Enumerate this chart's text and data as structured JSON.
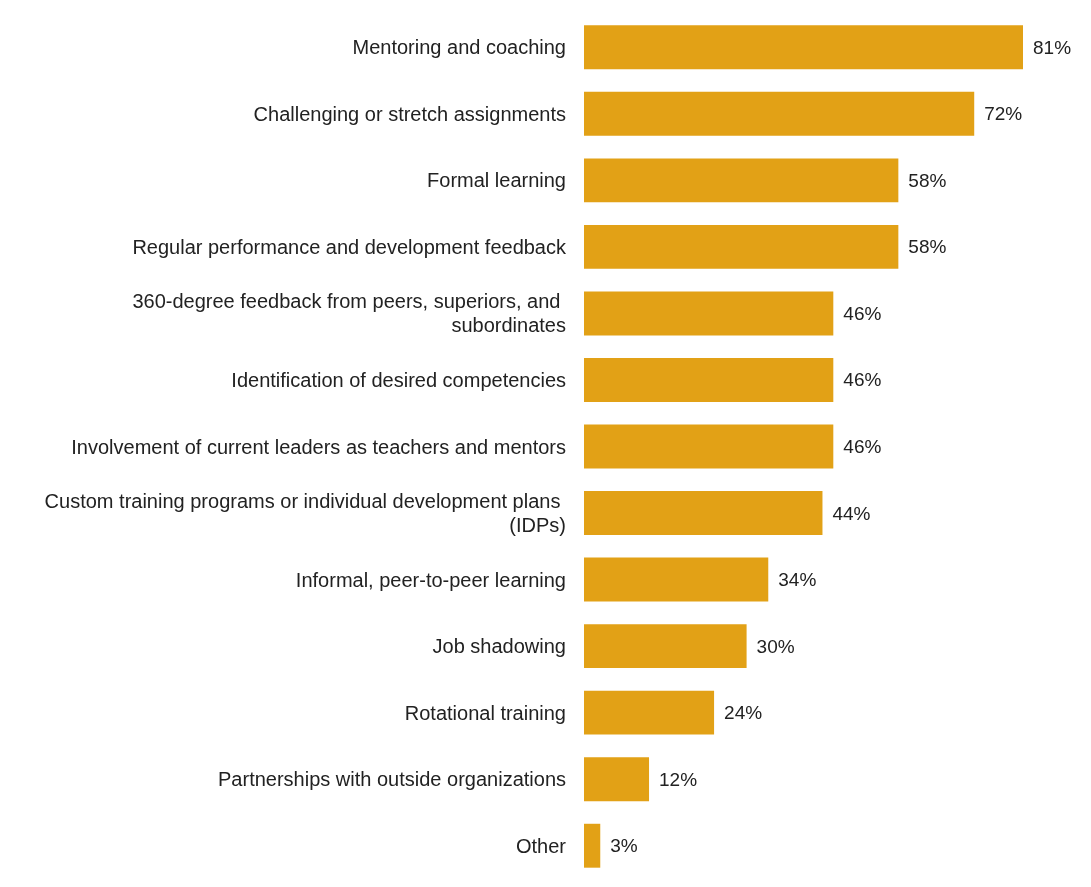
{
  "chart_data": {
    "type": "bar",
    "orientation": "horizontal",
    "categories": [
      "Mentoring and coaching",
      "Challenging or stretch assignments",
      "Formal learning",
      "Regular performance and development feedback",
      "360-degree feedback from peers, superiors, and subordinates",
      "Identification of desired competencies",
      "Involvement of current leaders as teachers and mentors",
      "Custom training programs or individual development plans (IDPs)",
      "Informal, peer-to-peer learning",
      "Job shadowing",
      "Rotational training",
      "Partnerships with outside organizations",
      "Other"
    ],
    "values": [
      81,
      72,
      58,
      58,
      46,
      46,
      46,
      44,
      34,
      30,
      24,
      12,
      3
    ],
    "value_labels": [
      "81%",
      "72%",
      "58%",
      "58%",
      "46%",
      "46%",
      "46%",
      "44%",
      "34%",
      "30%",
      "24%",
      "12%",
      "3%"
    ],
    "color": "#e2a116",
    "grid": false
  }
}
